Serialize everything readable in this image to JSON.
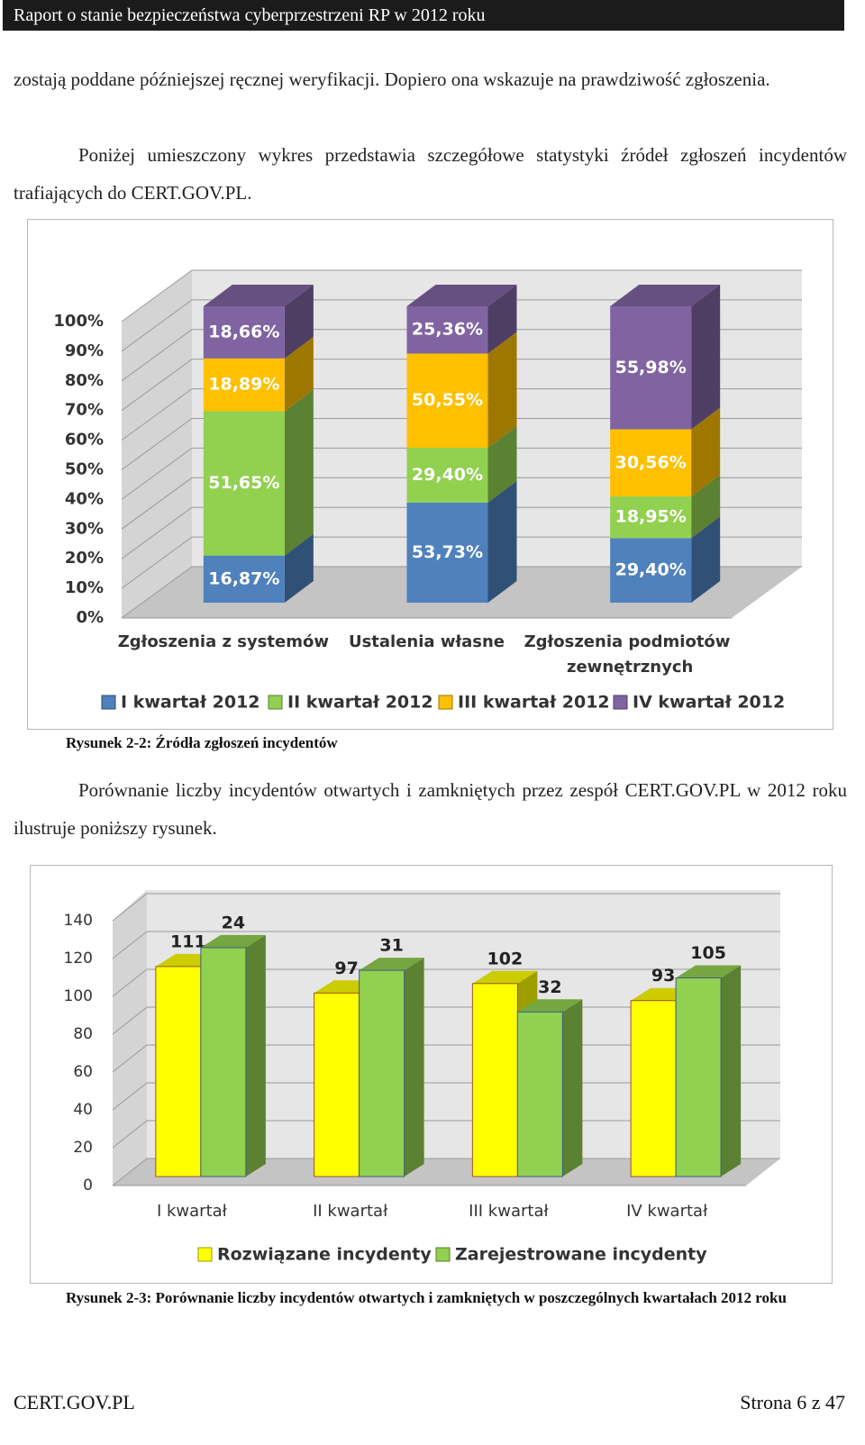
{
  "header": {
    "title": "Raport o stanie bezpieczeństwa cyberprzestrzeni RP w 2012 roku"
  },
  "paragraphs": [
    "zostają poddane późniejszej ręcznej weryfikacji. Dopiero ona wskazuje na prawdziwość zgłoszenia.",
    "Poniżej umieszczony wykres przedstawia szczegółowe statystyki źródeł zgłoszeń incydentów trafiających do CERT.GOV.PL.",
    "Porównanie liczby incydentów otwartych i zamkniętych przez zespół CERT.GOV.PL w 2012 roku ilustruje poniższy rysunek."
  ],
  "chart_data": [
    {
      "type": "stacked100",
      "categories": [
        "Zgłoszenia z systemów",
        "Ustalenia własne",
        "Zgłoszenia podmiotów zewnętrznych"
      ],
      "series": [
        {
          "name": "I kwartał 2012",
          "color": "#4f81bd",
          "values": [
            16.87,
            53.73,
            29.4
          ],
          "value_labels": [
            "16,87%",
            "53,73%",
            "29,40%"
          ]
        },
        {
          "name": "II kwartał 2012",
          "color": "#92d050",
          "values": [
            51.65,
            29.4,
            18.95
          ],
          "value_labels": [
            "51,65%",
            "29,40%",
            "18,95%"
          ]
        },
        {
          "name": "III kwartał 2012",
          "color": "#ffc000",
          "values": [
            18.89,
            50.55,
            30.56
          ],
          "value_labels": [
            "18,89%",
            "50,55%",
            "30,56%"
          ]
        },
        {
          "name": "IV kwartał 2012",
          "color": "#8064a2",
          "values": [
            18.66,
            25.36,
            55.98
          ],
          "value_labels": [
            "18,66%",
            "25,36%",
            "55,98%"
          ]
        }
      ],
      "ylim": [
        0,
        100
      ],
      "yticks": [
        {
          "value": 0,
          "label": "0%"
        },
        {
          "value": 10,
          "label": "10%"
        },
        {
          "value": 20,
          "label": "20%"
        },
        {
          "value": 30,
          "label": "30%"
        },
        {
          "value": 40,
          "label": "40%"
        },
        {
          "value": 50,
          "label": "50%"
        },
        {
          "value": 60,
          "label": "60%"
        },
        {
          "value": 70,
          "label": "70%"
        },
        {
          "value": 80,
          "label": "80%"
        },
        {
          "value": 90,
          "label": "90%"
        },
        {
          "value": 100,
          "label": "100%"
        }
      ],
      "grid": true,
      "legend": "bottom"
    },
    {
      "type": "bar",
      "categories": [
        "I kwartał",
        "II kwartał",
        "III kwartał",
        "IV kwartał"
      ],
      "series": [
        {
          "name": "Rozwiązane incydenty",
          "color": "#ffff00",
          "values": [
            111,
            97,
            102,
            93
          ]
        },
        {
          "name": "Zarejestrowane incydenty",
          "color": "#92d050",
          "values": [
            121,
            109,
            87,
            105
          ]
        }
      ],
      "annotations": [
        "24",
        "31",
        "32",
        "105"
      ],
      "ylim": [
        0,
        140
      ],
      "yticks": [
        0,
        20,
        40,
        60,
        80,
        100,
        120,
        140
      ],
      "grid": true,
      "legend": "bottom"
    }
  ],
  "captions": [
    "Rysunek 2-2: Źródła zgłoszeń incydentów",
    "Rysunek 2-3: Porównanie liczby incydentów otwartych i zamkniętych w poszczególnych kwartałach 2012 roku"
  ],
  "footer": {
    "left": "CERT.GOV.PL",
    "right": "Strona 6 z 47"
  }
}
